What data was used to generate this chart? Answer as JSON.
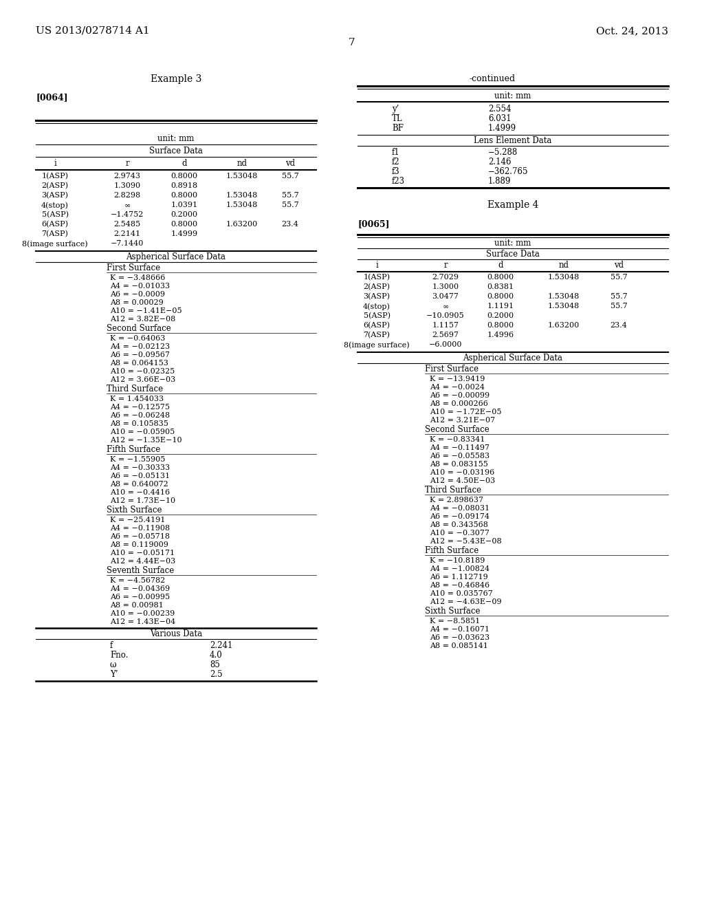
{
  "page_number": "7",
  "patent_left": "US 2013/0278714 A1",
  "patent_right": "Oct. 24, 2013",
  "example3_title": "Example 3",
  "example3_tag": "[0064]",
  "example3_unit": "unit: mm",
  "example3_surface_data_title": "Surface Data",
  "example3_surface_headers": [
    "i",
    "r",
    "d",
    "nd",
    "vd"
  ],
  "example3_surface_rows": [
    [
      "1(ASP)",
      "2.9743",
      "0.8000",
      "1.53048",
      "55.7"
    ],
    [
      "2(ASP)",
      "1.3090",
      "0.8918",
      "",
      ""
    ],
    [
      "3(ASP)",
      "2.8298",
      "0.8000",
      "1.53048",
      "55.7"
    ],
    [
      "4(stop)",
      "∞",
      "1.0391",
      "1.53048",
      "55.7"
    ],
    [
      "5(ASP)",
      "−1.4752",
      "0.2000",
      "",
      ""
    ],
    [
      "6(ASP)",
      "2.5485",
      "0.8000",
      "1.63200",
      "23.4"
    ],
    [
      "7(ASP)",
      "2.2141",
      "1.4999",
      "",
      ""
    ],
    [
      "8(image surface)",
      "−7.1440",
      "",
      "",
      ""
    ]
  ],
  "example3_aspherical_title": "Aspherical Surface Data",
  "example3_first_surface_label": "First Surface",
  "example3_first_surface_data": [
    "K = −3.48666",
    "A4 = −0.01033",
    "A6 = −0.0009",
    "A8 = 0.00029",
    "A10 = −1.41E−05",
    "A12 = 3.82E−08"
  ],
  "example3_second_surface_label": "Second Surface",
  "example3_second_surface_data": [
    "K = −0.64063",
    "A4 = −0.02123",
    "A6 = −0.09567",
    "A8 = 0.064153",
    "A10 = −0.02325",
    "A12 = 3.66E−03"
  ],
  "example3_third_surface_label": "Third Surface",
  "example3_third_surface_data": [
    "K = 1.454033",
    "A4 = −0.12575",
    "A6 = −0.06248",
    "A8 = 0.105835",
    "A10 = −0.05905",
    "A12 = −1.35E−10"
  ],
  "example3_fifth_surface_label": "Fifth Surface",
  "example3_fifth_surface_data": [
    "K = −1.55905",
    "A4 = −0.30333",
    "A6 = −0.05131",
    "A8 = 0.640072",
    "A10 = −0.4416",
    "A12 = 1.73E−10"
  ],
  "example3_sixth_surface_label": "Sixth Surface",
  "example3_sixth_surface_data": [
    "K = −25.4191",
    "A4 = −0.11908",
    "A6 = −0.05718",
    "A8 = 0.119009",
    "A10 = −0.05171",
    "A12 = 4.44E−03"
  ],
  "example3_seventh_surface_label": "Seventh Surface",
  "example3_seventh_surface_data": [
    "K = −4.56782",
    "A4 = −0.04369",
    "A6 = −0.00995",
    "A8 = 0.00981",
    "A10 = −0.00239",
    "A12 = 1.43E−04"
  ],
  "example3_various_title": "Various Data",
  "example3_various_data": [
    [
      "f",
      "2.241"
    ],
    [
      "Fno.",
      "4.0"
    ],
    [
      "ω",
      "85"
    ],
    [
      "Y’",
      "2.5"
    ]
  ],
  "continued_title": "-continued",
  "continued_unit": "unit: mm",
  "continued_basic_data": [
    [
      "y’",
      "2.554"
    ],
    [
      "TL",
      "6.031"
    ],
    [
      "BF",
      "1.4999"
    ]
  ],
  "continued_lens_element_title": "Lens Element Data",
  "continued_lens_element_data": [
    [
      "f1",
      "−5.288"
    ],
    [
      "f2",
      "2.146"
    ],
    [
      "f3",
      "−362.765"
    ],
    [
      "f23",
      "1.889"
    ]
  ],
  "example4_title": "Example 4",
  "example4_tag": "[0065]",
  "example4_unit": "unit: mm",
  "example4_surface_data_title": "Surface Data",
  "example4_surface_headers": [
    "i",
    "r",
    "d",
    "nd",
    "vd"
  ],
  "example4_surface_rows": [
    [
      "1(ASP)",
      "2.7029",
      "0.8000",
      "1.53048",
      "55.7"
    ],
    [
      "2(ASP)",
      "1.3000",
      "0.8381",
      "",
      ""
    ],
    [
      "3(ASP)",
      "3.0477",
      "0.8000",
      "1.53048",
      "55.7"
    ],
    [
      "4(stop)",
      "∞",
      "1.1191",
      "1.53048",
      "55.7"
    ],
    [
      "5(ASP)",
      "−10.0905",
      "0.2000",
      "",
      ""
    ],
    [
      "6(ASP)",
      "1.1157",
      "0.8000",
      "1.63200",
      "23.4"
    ],
    [
      "7(ASP)",
      "2.5697",
      "1.4996",
      "",
      ""
    ],
    [
      "8(image surface)",
      "−6.0000",
      "",
      "",
      ""
    ]
  ],
  "example4_aspherical_title": "Aspherical Surface Data",
  "example4_first_surface_label": "First Surface",
  "example4_first_surface_data": [
    "K = −13.9419",
    "A4 = −0.0024",
    "A6 = −0.00099",
    "A8 = 0.000266",
    "A10 = −1.72E−05",
    "A12 = 3.21E−07"
  ],
  "example4_second_surface_label": "Second Surface",
  "example4_second_surface_data": [
    "K = −0.83341",
    "A4 = −0.11497",
    "A6 = −0.05583",
    "A8 = 0.083155",
    "A10 = −0.03196",
    "A12 = 4.50E−03"
  ],
  "example4_third_surface_label": "Third Surface",
  "example4_third_surface_data": [
    "K = 2.898637",
    "A4 = −0.08031",
    "A6 = −0.09174",
    "A8 = 0.343568",
    "A10 = −0.3077",
    "A12 = −5.43E−08"
  ],
  "example4_fifth_surface_label": "Fifth Surface",
  "example4_fifth_surface_data": [
    "K = −10.8189",
    "A4 = −1.00824",
    "A6 = 1.112719",
    "A8 = −0.46846",
    "A10 = 0.035767",
    "A12 = −4.63E−09"
  ],
  "example4_sixth_surface_label": "Sixth Surface",
  "example4_sixth_surface_data": [
    "K = −8.5851",
    "A4 = −0.16071",
    "A6 = −0.03623",
    "A8 = 0.085141"
  ]
}
